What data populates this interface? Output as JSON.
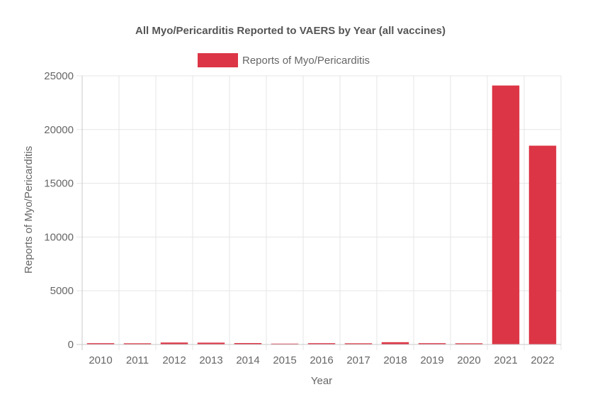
{
  "chart_data": {
    "type": "bar",
    "title": "All Myo/Pericarditis Reported to VAERS by Year (all vaccines)",
    "legend": {
      "position": "top",
      "entries": [
        "Reports of Myo/Pericarditis"
      ]
    },
    "xlabel": "Year",
    "ylabel": "Reports of Myo/Pericarditis",
    "categories": [
      "2010",
      "2011",
      "2012",
      "2013",
      "2014",
      "2015",
      "2016",
      "2017",
      "2018",
      "2019",
      "2020",
      "2021",
      "2022"
    ],
    "series": [
      {
        "name": "Reports of Myo/Pericarditis",
        "values": [
          120,
          110,
          180,
          170,
          130,
          60,
          120,
          110,
          210,
          120,
          110,
          24100,
          18500
        ],
        "color": "#dc3545"
      }
    ],
    "ylim": [
      0,
      25000
    ],
    "yticks": [
      0,
      5000,
      10000,
      15000,
      20000,
      25000
    ],
    "grid": true
  }
}
